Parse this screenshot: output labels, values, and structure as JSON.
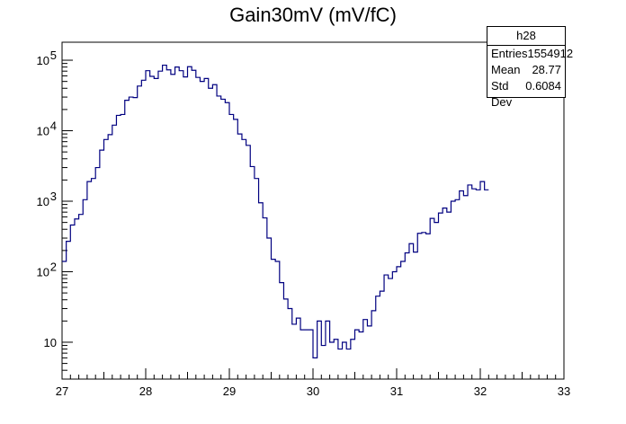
{
  "chart_data": {
    "type": "histogram",
    "title": "Gain30mV (mV/fC)",
    "xlim": [
      27,
      33
    ],
    "ylim": [
      3,
      180000
    ],
    "yscale": "log",
    "x_ticks": [
      "27",
      "28",
      "29",
      "30",
      "31",
      "32",
      "33"
    ],
    "y_ticks": [
      {
        "value": 10,
        "label": "10"
      },
      {
        "value": 100,
        "label": "10",
        "exp": "2"
      },
      {
        "value": 1000,
        "label": "10",
        "exp": "3"
      },
      {
        "value": 10000,
        "label": "10",
        "exp": "4"
      },
      {
        "value": 100000,
        "label": "10",
        "exp": "5"
      }
    ],
    "series": [
      {
        "color": "#000080",
        "bin_width": 0.05,
        "bin_start": 27.0,
        "values": [
          140,
          270,
          460,
          560,
          650,
          1050,
          1900,
          2100,
          3000,
          5300,
          7500,
          8800,
          12000,
          16500,
          17000,
          27000,
          30000,
          29500,
          43000,
          52000,
          71000,
          59000,
          55000,
          70000,
          85000,
          73000,
          63000,
          80000,
          71000,
          58000,
          81000,
          72000,
          57000,
          50000,
          55000,
          40000,
          45000,
          31000,
          28000,
          25000,
          17000,
          14500,
          9000,
          7500,
          6200,
          3100,
          2100,
          950,
          580,
          300,
          150,
          140,
          70,
          41,
          30,
          18,
          22,
          15,
          15,
          15,
          6,
          20,
          9,
          20,
          10,
          11,
          8,
          10,
          8,
          11,
          15,
          14,
          21,
          17,
          28,
          45,
          53,
          90,
          80,
          100,
          118,
          140,
          185,
          250,
          190,
          350,
          360,
          345,
          570,
          500,
          680,
          800,
          700,
          1000,
          1050,
          1400,
          1200,
          1700,
          1500,
          1450,
          1900,
          1450
        ]
      }
    ]
  },
  "stats_box": {
    "name": "h28",
    "rows": [
      {
        "label": "Entries",
        "value": "1554912"
      },
      {
        "label": "Mean",
        "value": "28.77"
      },
      {
        "label": "Std Dev",
        "value": "0.6084"
      }
    ]
  }
}
